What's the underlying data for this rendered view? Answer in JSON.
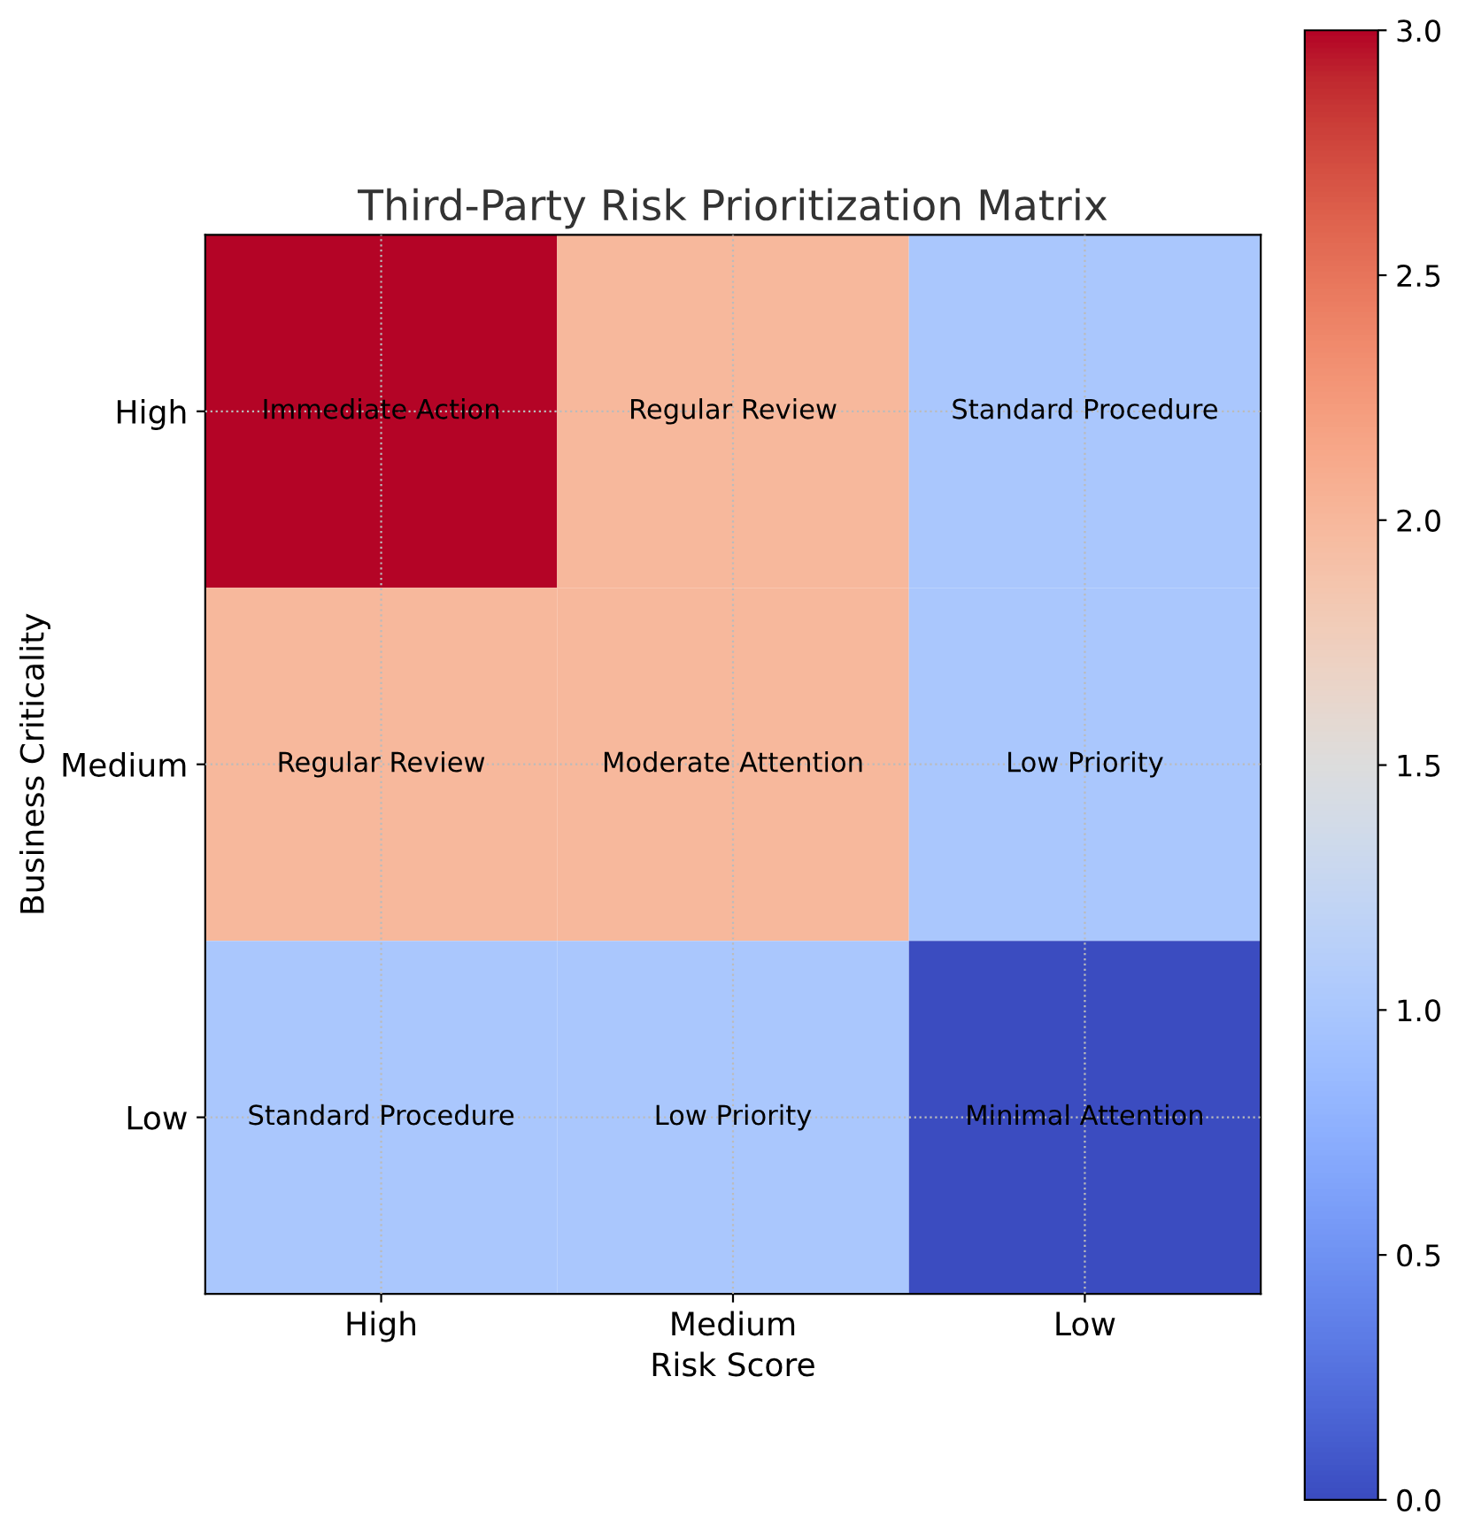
{
  "chart_data": {
    "type": "heatmap",
    "title": "Third-Party Risk Prioritization Matrix",
    "xlabel": "Risk Score",
    "ylabel": "Business Criticality",
    "categories": [
      "High",
      "Medium",
      "Low"
    ],
    "y_categories": [
      "High",
      "Medium",
      "Low"
    ],
    "cells": [
      [
        3,
        2,
        1
      ],
      [
        2,
        2,
        1
      ],
      [
        1,
        1,
        0
      ]
    ],
    "cell_labels": [
      [
        "Immediate Action",
        "Regular Review",
        "Standard Procedure"
      ],
      [
        "Regular Review",
        "Moderate Attention",
        "Low Priority"
      ],
      [
        "Standard Procedure",
        "Low Priority",
        "Minimal Attention"
      ]
    ],
    "clim": [
      0,
      3
    ],
    "cticks": [
      {
        "value": 0,
        "label": "0.0"
      },
      {
        "value": 0.5,
        "label": "0.5"
      },
      {
        "value": 1,
        "label": "1.0"
      },
      {
        "value": 1.5,
        "label": "1.5"
      },
      {
        "value": 2,
        "label": "2.0"
      },
      {
        "value": 2.5,
        "label": "2.5"
      },
      {
        "value": 3,
        "label": "3.0"
      }
    ],
    "grid": true
  }
}
